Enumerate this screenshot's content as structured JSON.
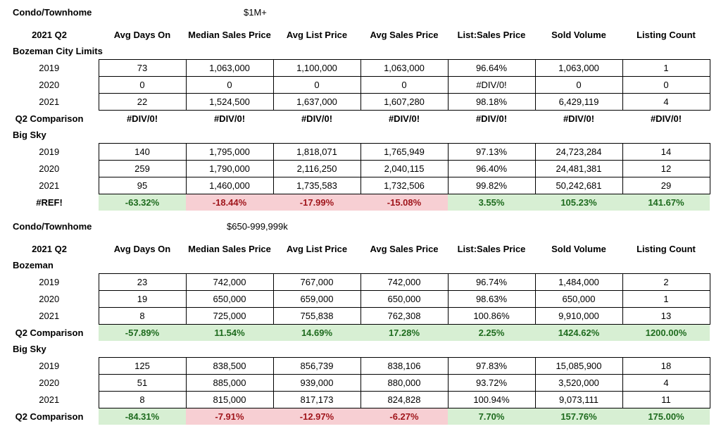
{
  "columns": [
    "Avg Days On",
    "Median Sales Price",
    "Avg List Price",
    "Avg Sales Price",
    "List:Sales Price",
    "Sold Volume",
    "Listing Count"
  ],
  "tables": [
    {
      "title": "Condo/Townhome",
      "price_range": "$1M+",
      "period": "2021 Q2",
      "sections": [
        {
          "name": "Bozeman City Limits",
          "rows": [
            {
              "year": "2019",
              "values": [
                "73",
                "1,063,000",
                "1,100,000",
                "1,063,000",
                "96.64%",
                "1,063,000",
                "1"
              ]
            },
            {
              "year": "2020",
              "values": [
                "0",
                "0",
                "0",
                "0",
                "#DIV/0!",
                "0",
                "0"
              ]
            },
            {
              "year": "2021",
              "values": [
                "22",
                "1,524,500",
                "1,637,000",
                "1,607,280",
                "98.18%",
                "6,429,119",
                "4"
              ]
            }
          ],
          "comparison": {
            "label": "Q2 Comparison",
            "values": [
              "#DIV/0!",
              "#DIV/0!",
              "#DIV/0!",
              "#DIV/0!",
              "#DIV/0!",
              "#DIV/0!",
              "#DIV/0!"
            ],
            "signs": [
              "none",
              "none",
              "none",
              "none",
              "none",
              "none",
              "none"
            ]
          }
        },
        {
          "name": "Big Sky",
          "rows": [
            {
              "year": "2019",
              "values": [
                "140",
                "1,795,000",
                "1,818,071",
                "1,765,949",
                "97.13%",
                "24,723,284",
                "14"
              ]
            },
            {
              "year": "2020",
              "values": [
                "259",
                "1,790,000",
                "2,116,250",
                "2,040,115",
                "96.40%",
                "24,481,381",
                "12"
              ]
            },
            {
              "year": "2021",
              "values": [
                "95",
                "1,460,000",
                "1,735,583",
                "1,732,506",
                "99.82%",
                "50,242,681",
                "29"
              ]
            }
          ],
          "comparison": {
            "label": "#REF!",
            "values": [
              "-63.32%",
              "-18.44%",
              "-17.99%",
              "-15.08%",
              "3.55%",
              "105.23%",
              "141.67%"
            ],
            "signs": [
              "pos",
              "neg",
              "neg",
              "neg",
              "pos",
              "pos",
              "pos"
            ]
          }
        }
      ]
    },
    {
      "title": "Condo/Townhome",
      "price_range": "$650-999,999k",
      "period": "2021 Q2",
      "sections": [
        {
          "name": "Bozeman",
          "rows": [
            {
              "year": "2019",
              "values": [
                "23",
                "742,000",
                "767,000",
                "742,000",
                "96.74%",
                "1,484,000",
                "2"
              ]
            },
            {
              "year": "2020",
              "values": [
                "19",
                "650,000",
                "659,000",
                "650,000",
                "98.63%",
                "650,000",
                "1"
              ]
            },
            {
              "year": "2021",
              "values": [
                "8",
                "725,000",
                "755,838",
                "762,308",
                "100.86%",
                "9,910,000",
                "13"
              ]
            }
          ],
          "comparison": {
            "label": "Q2 Comparison",
            "values": [
              "-57.89%",
              "11.54%",
              "14.69%",
              "17.28%",
              "2.25%",
              "1424.62%",
              "1200.00%"
            ],
            "signs": [
              "pos",
              "pos",
              "pos",
              "pos",
              "pos",
              "pos",
              "pos"
            ]
          }
        },
        {
          "name": "Big Sky",
          "rows": [
            {
              "year": "2019",
              "values": [
                "125",
                "838,500",
                "856,739",
                "838,106",
                "97.83%",
                "15,085,900",
                "18"
              ]
            },
            {
              "year": "2020",
              "values": [
                "51",
                "885,000",
                "939,000",
                "880,000",
                "93.72%",
                "3,520,000",
                "4"
              ]
            },
            {
              "year": "2021",
              "values": [
                "8",
                "815,000",
                "817,173",
                "824,828",
                "100.94%",
                "9,073,111",
                "11"
              ]
            }
          ],
          "comparison": {
            "label": "Q2 Comparison",
            "values": [
              "-84.31%",
              "-7.91%",
              "-12.97%",
              "-6.27%",
              "7.70%",
              "157.76%",
              "175.00%"
            ],
            "signs": [
              "pos",
              "neg",
              "neg",
              "neg",
              "pos",
              "pos",
              "pos"
            ]
          }
        }
      ]
    }
  ]
}
